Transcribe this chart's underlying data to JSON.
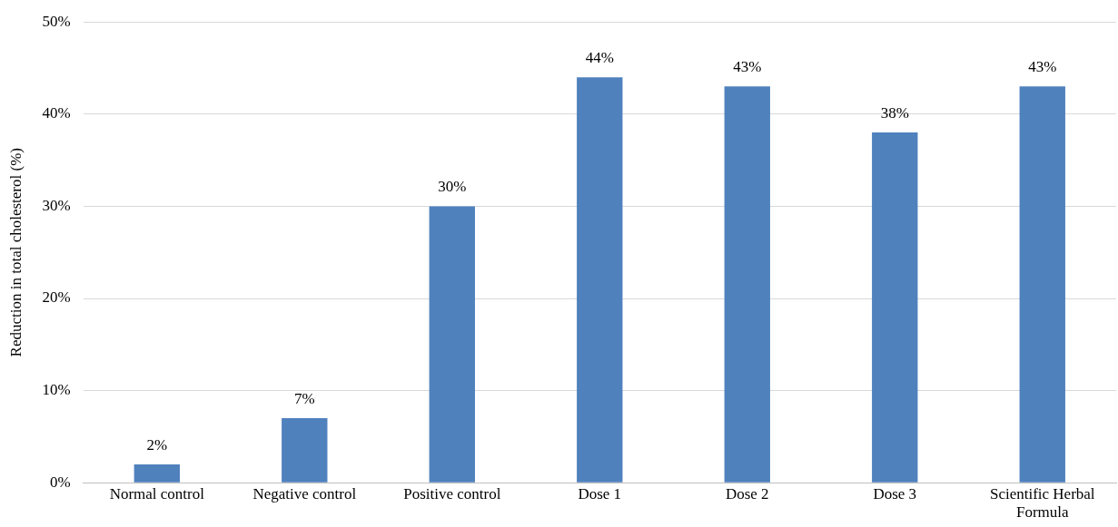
{
  "chart_data": {
    "type": "bar",
    "ylabel": "Reduction in total cholesterol (%)",
    "categories": [
      "Normal control",
      "Negative control",
      "Positive control",
      "Dose 1",
      "Dose 2",
      "Dose 3",
      "Scientific Herbal Formula"
    ],
    "values": [
      2,
      7,
      30,
      44,
      43,
      38,
      43
    ],
    "value_labels": [
      "2%",
      "7%",
      "30%",
      "44%",
      "43%",
      "38%",
      "43%"
    ],
    "color": "#4f81bd",
    "ylim": [
      0,
      50
    ],
    "yticks": [
      {
        "value": 0,
        "label": "0%"
      },
      {
        "value": 10,
        "label": "10%"
      },
      {
        "value": 20,
        "label": "20%"
      },
      {
        "value": 30,
        "label": "30%"
      },
      {
        "value": 40,
        "label": "40%"
      },
      {
        "value": 50,
        "label": "50%"
      }
    ],
    "grid": "y",
    "legend": false
  }
}
